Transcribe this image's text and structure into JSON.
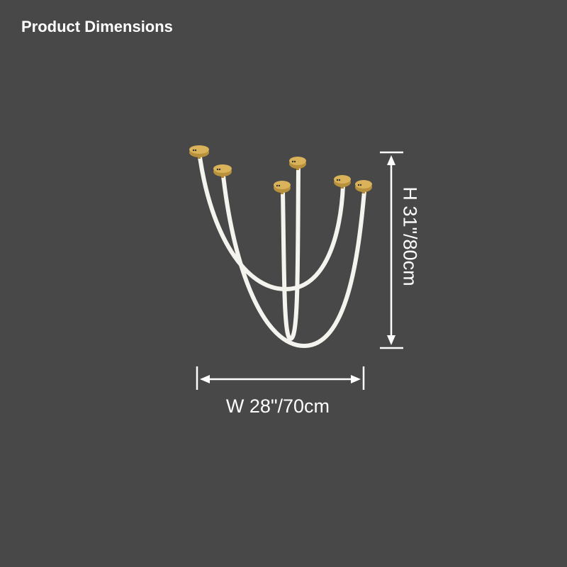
{
  "title": "Product Dimensions",
  "dimensions": {
    "height_label": "H 31\"/80cm",
    "width_label": "W 28\"/70cm"
  },
  "colors": {
    "background": "#484848",
    "tube": "#f4f3ee",
    "canopy": "#c9a045",
    "dimension_lines": "#ffffff"
  }
}
